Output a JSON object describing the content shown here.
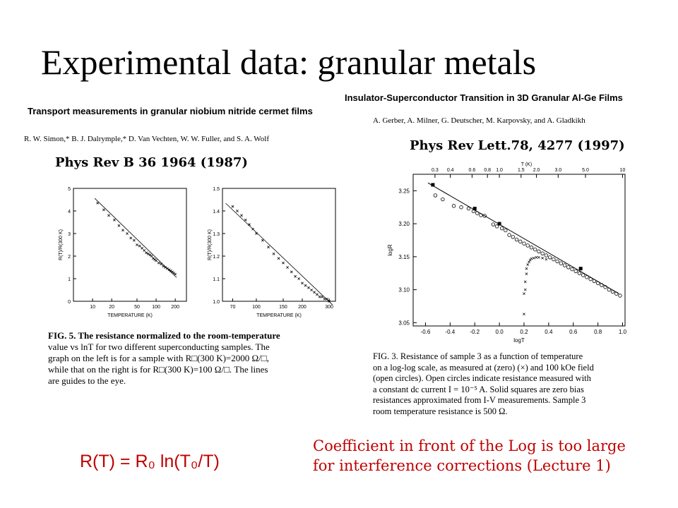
{
  "slide": {
    "title": "Experimental data:  granular metals"
  },
  "left_paper": {
    "title": "Transport measurements in granular niobium nitride cermet films",
    "authors": "R. W. Simon,* B. J. Dalrymple,* D. Van Vechten, W. W. Fuller, and S. A. Wolf",
    "reference": "Phys Rev B 36  1964 (1987)",
    "caption_lines": [
      "FIG. 5.  The resistance normalized to the room-temperature",
      "value vs lnT for two different superconducting samples.  The",
      "graph on the left is for a sample with R□(300 K)=2000 Ω/□,",
      "while that on the right is for R□(300 K)=100 Ω/□.  The lines",
      "are guides to the eye."
    ]
  },
  "right_paper": {
    "title": "Insulator-Superconductor Transition in 3D Granular Al-Ge Films",
    "authors": "A. Gerber, A. Milner, G. Deutscher, M. Karpovsky, and A. Gladkikh",
    "reference": "Phys Rev Lett.78, 4277 (1997)",
    "caption_lines": [
      "FIG. 3.   Resistance of sample 3 as a function of temperature",
      "on a log-log scale, as measured at (zero) (×) and 100 kOe field",
      "(open circles).  Open circles indicate resistance measured with",
      "a constant dc current I = 10⁻⁵ A.  Solid squares are zero bias",
      "resistances approximated from I-V measurements.  Sample 3",
      "room temperature resistance is 500 Ω."
    ]
  },
  "formula": "R(T) = R₀ ln(T₀/T)",
  "comment_lines": [
    "Coefficient in front of the Log  is too large",
    " for interference corrections (Lecture 1)"
  ],
  "colors": {
    "accent": "#c00000",
    "text": "#000000"
  },
  "chart_data": [
    {
      "type": "scatter",
      "xlabel": "TEMPERATURE (K)",
      "ylabel": "R(T)/R(300 K)",
      "x_scale": "log",
      "x_ticks": [
        "10",
        "20",
        "50",
        "100",
        "200"
      ],
      "y_ticks": [
        "0",
        "1",
        "2",
        "3",
        "4",
        "5"
      ],
      "ylim": [
        0,
        5
      ],
      "xlim": [
        5,
        300
      ],
      "x": [
        12,
        15,
        18,
        22,
        26,
        30,
        35,
        40,
        45,
        50,
        55,
        60,
        65,
        70,
        75,
        80,
        85,
        90,
        95,
        100,
        110,
        120,
        130,
        140,
        150,
        160,
        170,
        180,
        190,
        200
      ],
      "y": [
        4.35,
        4.05,
        3.8,
        3.6,
        3.35,
        3.15,
        3.0,
        2.8,
        2.7,
        2.5,
        2.45,
        2.35,
        2.25,
        2.15,
        2.1,
        2.05,
        2.0,
        1.9,
        1.85,
        1.8,
        1.7,
        1.65,
        1.55,
        1.5,
        1.45,
        1.4,
        1.35,
        1.3,
        1.25,
        1.2
      ]
    },
    {
      "type": "scatter",
      "xlabel": "TEMPERATURE (K)",
      "ylabel": "R(T)/R(300 K)",
      "x_scale": "log",
      "x_ticks": [
        "70",
        "100",
        "150",
        "200",
        "300"
      ],
      "y_ticks": [
        "1.0",
        "1.1",
        "1.2",
        "1.3",
        "1.4",
        "1.5"
      ],
      "ylim": [
        1.0,
        1.5
      ],
      "xlim": [
        60,
        330
      ],
      "x": [
        70,
        75,
        80,
        85,
        90,
        95,
        100,
        110,
        120,
        130,
        140,
        150,
        160,
        170,
        180,
        190,
        200,
        210,
        220,
        230,
        240,
        250,
        260,
        270,
        280,
        290,
        300
      ],
      "y": [
        1.42,
        1.4,
        1.38,
        1.36,
        1.34,
        1.32,
        1.3,
        1.27,
        1.24,
        1.21,
        1.19,
        1.17,
        1.15,
        1.13,
        1.11,
        1.1,
        1.08,
        1.07,
        1.06,
        1.05,
        1.04,
        1.03,
        1.02,
        1.02,
        1.01,
        1.01,
        1.0
      ]
    },
    {
      "type": "scatter",
      "xlabel": "logT",
      "ylabel": "logR",
      "top_axis_label": "T (K)",
      "top_ticks": [
        "0.3",
        "0.4",
        "0.6",
        "0.8",
        "1.0",
        "1.5",
        "2.0",
        "3.0",
        "5.0",
        "10"
      ],
      "x_ticks": [
        "-0.6",
        "-0.4",
        "-0.2",
        "0.0",
        "0.2",
        "0.4",
        "0.6",
        "0.8",
        "1.0"
      ],
      "y_ticks": [
        "3.05",
        "3.10",
        "3.15",
        "3.20",
        "3.25"
      ],
      "xlim": [
        -0.7,
        1.02
      ],
      "ylim": [
        3.045,
        3.275
      ],
      "series": [
        {
          "marker": "open-circle",
          "x": [
            -0.52,
            -0.46,
            -0.37,
            -0.31,
            -0.25,
            -0.21,
            -0.18,
            -0.15,
            -0.12,
            -0.05,
            -0.02,
            0.02,
            0.05,
            0.08,
            0.11,
            0.14,
            0.17,
            0.2,
            0.23,
            0.26,
            0.29,
            0.32,
            0.35,
            0.38,
            0.41,
            0.44,
            0.47,
            0.5,
            0.53,
            0.56,
            0.59,
            0.62,
            0.65,
            0.68,
            0.71,
            0.74,
            0.77,
            0.8,
            0.83,
            0.86,
            0.89,
            0.92,
            0.95,
            0.98
          ],
          "y": [
            3.243,
            3.237,
            3.227,
            3.225,
            3.223,
            3.219,
            3.216,
            3.213,
            3.212,
            3.199,
            3.196,
            3.193,
            3.19,
            3.183,
            3.18,
            3.176,
            3.173,
            3.17,
            3.167,
            3.164,
            3.161,
            3.158,
            3.155,
            3.152,
            3.149,
            3.146,
            3.143,
            3.14,
            3.137,
            3.134,
            3.131,
            3.128,
            3.125,
            3.122,
            3.119,
            3.116,
            3.113,
            3.11,
            3.107,
            3.104,
            3.1,
            3.097,
            3.094,
            3.091
          ]
        },
        {
          "marker": "cross",
          "x": [
            0.2,
            0.2,
            0.21,
            0.21,
            0.22,
            0.22,
            0.23,
            0.24,
            0.25,
            0.26,
            0.28,
            0.3,
            0.32,
            0.35,
            0.38
          ],
          "y": [
            3.063,
            3.094,
            3.1,
            3.112,
            3.124,
            3.132,
            3.138,
            3.142,
            3.145,
            3.147,
            3.148,
            3.149,
            3.149,
            3.148,
            3.146
          ]
        },
        {
          "marker": "filled-square",
          "x": [
            -0.54,
            -0.2,
            0.0,
            0.66
          ],
          "y": [
            3.259,
            3.223,
            3.2,
            3.132
          ]
        }
      ],
      "fit_line": {
        "x": [
          -0.58,
          0.97
        ],
        "y": [
          3.262,
          3.094
        ]
      }
    }
  ]
}
